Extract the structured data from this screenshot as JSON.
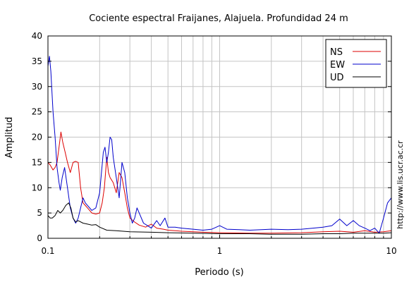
{
  "chart_data": {
    "type": "line",
    "title": "Cociente espectral Fraijanes, Alajuela. Profundidad 24 m",
    "xlabel": "Periodo (s)",
    "ylabel": "Amplitud",
    "x_scale": "log",
    "xlim": [
      0.1,
      10
    ],
    "ylim": [
      0,
      40
    ],
    "x_tick_labels": [
      "0.1",
      "1",
      "10"
    ],
    "y_tick_labels": [
      "0",
      "5",
      "10",
      "15",
      "20",
      "25",
      "30",
      "35",
      "40"
    ],
    "grid": true,
    "legend_position": "top-right",
    "side_text": "http://www.lis.ucr.ac.cr",
    "series": [
      {
        "name": "NS",
        "color": "#dd0000",
        "points": [
          [
            0.1,
            15
          ],
          [
            0.103,
            14.5
          ],
          [
            0.107,
            13.5
          ],
          [
            0.11,
            14
          ],
          [
            0.113,
            15
          ],
          [
            0.116,
            18
          ],
          [
            0.119,
            21
          ],
          [
            0.122,
            19
          ],
          [
            0.126,
            17
          ],
          [
            0.13,
            15
          ],
          [
            0.135,
            13
          ],
          [
            0.14,
            15
          ],
          [
            0.145,
            15.2
          ],
          [
            0.15,
            15
          ],
          [
            0.155,
            10
          ],
          [
            0.16,
            7
          ],
          [
            0.165,
            6.5
          ],
          [
            0.17,
            6
          ],
          [
            0.18,
            5
          ],
          [
            0.19,
            4.8
          ],
          [
            0.2,
            5
          ],
          [
            0.207,
            7
          ],
          [
            0.213,
            10
          ],
          [
            0.22,
            16
          ],
          [
            0.225,
            13
          ],
          [
            0.23,
            12
          ],
          [
            0.24,
            11
          ],
          [
            0.25,
            9
          ],
          [
            0.26,
            13
          ],
          [
            0.27,
            12
          ],
          [
            0.28,
            9
          ],
          [
            0.29,
            6
          ],
          [
            0.3,
            4
          ],
          [
            0.32,
            3.2
          ],
          [
            0.34,
            2.6
          ],
          [
            0.37,
            2.2
          ],
          [
            0.4,
            2.8
          ],
          [
            0.43,
            2
          ],
          [
            0.47,
            1.8
          ],
          [
            0.5,
            1.6
          ],
          [
            0.6,
            1.4
          ],
          [
            0.7,
            1.3
          ],
          [
            0.8,
            1.2
          ],
          [
            1,
            1.1
          ],
          [
            1.5,
            1
          ],
          [
            2,
            1
          ],
          [
            3,
            1.1
          ],
          [
            4,
            1.3
          ],
          [
            5,
            1.4
          ],
          [
            6,
            1.2
          ],
          [
            7,
            1.5
          ],
          [
            8,
            1.2
          ],
          [
            9,
            1.3
          ],
          [
            10,
            1.5
          ]
        ]
      },
      {
        "name": "EW",
        "color": "#0000cc",
        "points": [
          [
            0.1,
            34
          ],
          [
            0.102,
            36
          ],
          [
            0.104,
            33
          ],
          [
            0.107,
            25
          ],
          [
            0.11,
            20
          ],
          [
            0.113,
            14
          ],
          [
            0.116,
            11
          ],
          [
            0.118,
            9.5
          ],
          [
            0.121,
            12
          ],
          [
            0.125,
            14
          ],
          [
            0.13,
            10
          ],
          [
            0.135,
            6
          ],
          [
            0.14,
            4
          ],
          [
            0.145,
            3
          ],
          [
            0.15,
            4
          ],
          [
            0.155,
            6
          ],
          [
            0.16,
            8
          ],
          [
            0.165,
            7
          ],
          [
            0.17,
            6.5
          ],
          [
            0.18,
            5.5
          ],
          [
            0.19,
            6
          ],
          [
            0.2,
            9
          ],
          [
            0.205,
            13
          ],
          [
            0.21,
            17
          ],
          [
            0.215,
            18
          ],
          [
            0.22,
            15
          ],
          [
            0.225,
            17
          ],
          [
            0.23,
            20
          ],
          [
            0.235,
            19.5
          ],
          [
            0.24,
            16
          ],
          [
            0.25,
            12
          ],
          [
            0.26,
            8
          ],
          [
            0.27,
            15
          ],
          [
            0.28,
            13
          ],
          [
            0.29,
            8
          ],
          [
            0.3,
            5
          ],
          [
            0.31,
            3
          ],
          [
            0.32,
            4
          ],
          [
            0.33,
            6
          ],
          [
            0.34,
            5
          ],
          [
            0.36,
            3
          ],
          [
            0.38,
            2.5
          ],
          [
            0.4,
            2
          ],
          [
            0.43,
            3.5
          ],
          [
            0.45,
            2.5
          ],
          [
            0.48,
            4
          ],
          [
            0.5,
            2.2
          ],
          [
            0.55,
            2.2
          ],
          [
            0.6,
            2
          ],
          [
            0.7,
            1.8
          ],
          [
            0.8,
            1.6
          ],
          [
            0.9,
            1.8
          ],
          [
            1,
            2.5
          ],
          [
            1.1,
            1.8
          ],
          [
            1.3,
            1.7
          ],
          [
            1.5,
            1.6
          ],
          [
            2,
            1.8
          ],
          [
            2.5,
            1.7
          ],
          [
            3,
            1.8
          ],
          [
            3.5,
            2
          ],
          [
            4,
            2.2
          ],
          [
            4.5,
            2.5
          ],
          [
            5,
            3.8
          ],
          [
            5.5,
            2.5
          ],
          [
            6,
            3.5
          ],
          [
            6.5,
            2.5
          ],
          [
            7,
            2
          ],
          [
            7.5,
            1.5
          ],
          [
            8,
            2
          ],
          [
            8.5,
            1
          ],
          [
            9,
            4
          ],
          [
            9.5,
            7
          ],
          [
            10,
            8
          ]
        ]
      },
      {
        "name": "UD",
        "color": "#000000",
        "points": [
          [
            0.1,
            4.5
          ],
          [
            0.103,
            4
          ],
          [
            0.106,
            4
          ],
          [
            0.11,
            4.5
          ],
          [
            0.114,
            5.5
          ],
          [
            0.118,
            5
          ],
          [
            0.122,
            5.5
          ],
          [
            0.127,
            6.5
          ],
          [
            0.132,
            7
          ],
          [
            0.136,
            6
          ],
          [
            0.14,
            4
          ],
          [
            0.145,
            3.2
          ],
          [
            0.15,
            3.5
          ],
          [
            0.16,
            3
          ],
          [
            0.17,
            2.8
          ],
          [
            0.18,
            2.6
          ],
          [
            0.19,
            2.7
          ],
          [
            0.2,
            2.2
          ],
          [
            0.22,
            1.6
          ],
          [
            0.25,
            1.5
          ],
          [
            0.3,
            1.3
          ],
          [
            0.4,
            1.2
          ],
          [
            0.5,
            1.1
          ],
          [
            0.7,
            1
          ],
          [
            1,
            0.9
          ],
          [
            1.5,
            0.9
          ],
          [
            2,
            0.8
          ],
          [
            3,
            0.8
          ],
          [
            4,
            0.9
          ],
          [
            5,
            0.9
          ],
          [
            6,
            1
          ],
          [
            7,
            1
          ],
          [
            8,
            1
          ],
          [
            9,
            1
          ],
          [
            10,
            1.1
          ]
        ]
      }
    ]
  }
}
